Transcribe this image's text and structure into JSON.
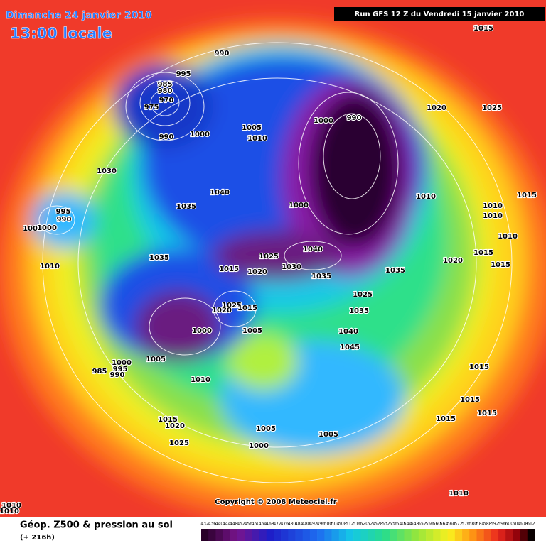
{
  "header": {
    "date": "Dimanche 24 janvier 2010",
    "time": "13:00 locale",
    "run": "Run GFS 12 Z du Vendredi 15 janvier 2010"
  },
  "isobar_labels": [
    "1015",
    "990",
    "995",
    "985",
    "980",
    "970",
    "975",
    "990",
    "1000",
    "1005",
    "1010",
    "1000",
    "990",
    "1020",
    "1025",
    "1030",
    "1040",
    "1035",
    "1000",
    "1010",
    "1015",
    "1010",
    "1010",
    "1010",
    "995",
    "990",
    "1005",
    "1000",
    "1010",
    "1035",
    "1025",
    "1040",
    "1030",
    "1015",
    "1020",
    "1035",
    "1035",
    "1020",
    "1015",
    "1015",
    "1025",
    "1035",
    "1025",
    "1020",
    "1015",
    "1040",
    "1045",
    "1000",
    "1005",
    "1005",
    "1000",
    "995",
    "985",
    "990",
    "1010",
    "1015",
    "1015",
    "1015",
    "1015",
    "1015",
    "1020",
    "1025",
    "1005",
    "1005",
    "1000",
    "1010",
    "1010",
    "1010"
  ],
  "legend": {
    "title": "Géop. Z500 & pression au sol",
    "lead": "(+ 216h)",
    "scale": [
      432,
      436,
      440,
      444,
      448,
      452,
      456,
      460,
      464,
      468,
      472,
      476,
      480,
      484,
      488,
      492,
      496,
      500,
      504,
      508,
      512,
      516,
      520,
      524,
      528,
      532,
      536,
      540,
      544,
      548,
      552,
      556,
      560,
      564,
      568,
      572,
      576,
      580,
      584,
      588,
      592,
      596,
      600,
      604,
      608,
      612
    ]
  },
  "copyright": "Copyright © 2008 Meteociel.fr"
}
